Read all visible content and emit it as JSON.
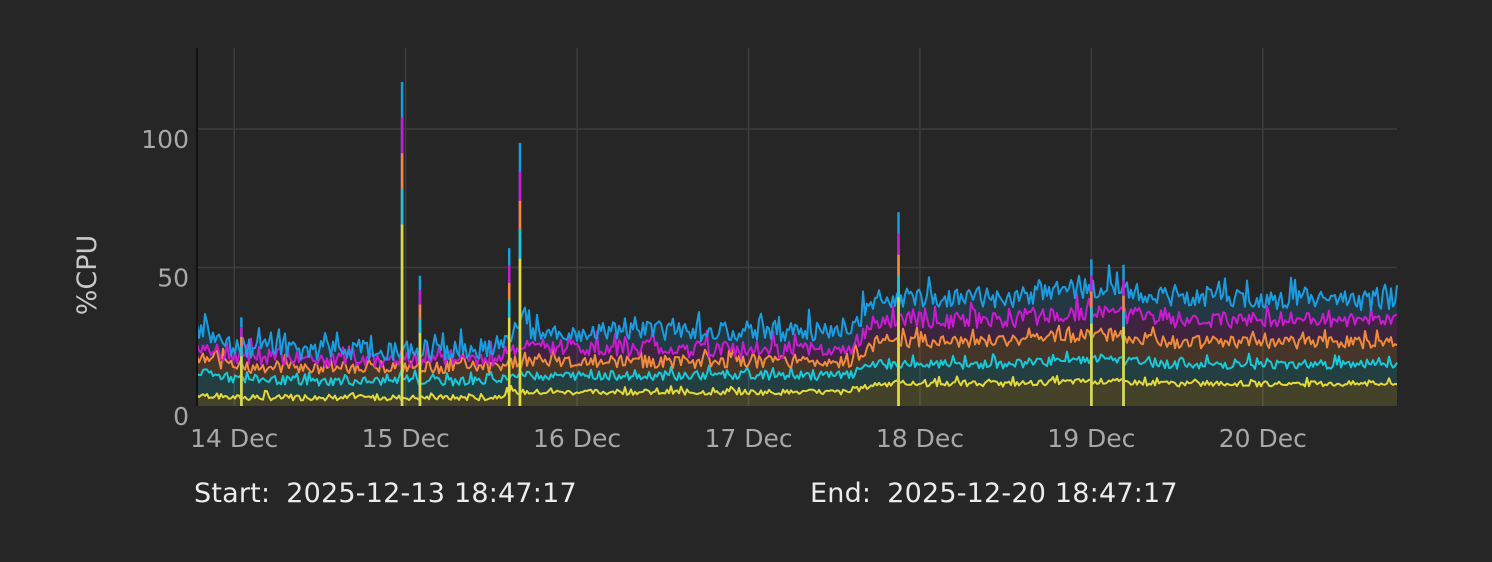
{
  "chart_data": {
    "type": "area",
    "ylabel": "%CPU",
    "xlabel": "",
    "ylim": [
      0,
      130
    ],
    "yticks": [
      0,
      50,
      100
    ],
    "ytick_labels": [
      "0",
      "50",
      "100"
    ],
    "xlim": [
      "2025-12-13 18:47:17",
      "2025-12-20 18:47:17"
    ],
    "xtick_labels": [
      "14 Dec",
      "15 Dec",
      "16 Dec",
      "17 Dec",
      "18 Dec",
      "19 Dec",
      "20 Dec"
    ],
    "xtick_dates": [
      "2025-12-14",
      "2025-12-15",
      "2025-12-16",
      "2025-12-17",
      "2025-12-18",
      "2025-12-19",
      "2025-12-20"
    ],
    "grid": true,
    "stacked": true,
    "series": [
      {
        "color": "#e4d93a",
        "x": [
          "2025-12-13 19:00",
          "2025-12-14 00:00",
          "2025-12-14 10:00",
          "2025-12-14 23:00",
          "2025-12-15 00:00",
          "2025-12-15 12:00",
          "2025-12-15 15:00",
          "2025-12-16 00:00",
          "2025-12-17 00:00",
          "2025-12-17 14:00",
          "2025-12-17 18:00",
          "2025-12-18 12:00",
          "2025-12-19 00:00",
          "2025-12-19 12:00",
          "2025-12-20 00:00",
          "2025-12-20 18:47"
        ],
        "values": [
          4,
          3,
          3,
          3,
          3,
          3,
          5,
          5,
          5,
          5,
          8,
          8,
          9,
          8,
          8,
          8
        ]
      },
      {
        "color": "#16c8d8",
        "x": [
          "2025-12-13 19:00",
          "2025-12-14 00:00",
          "2025-12-14 10:00",
          "2025-12-14 23:00",
          "2025-12-15 00:00",
          "2025-12-15 12:00",
          "2025-12-15 15:00",
          "2025-12-16 00:00",
          "2025-12-17 00:00",
          "2025-12-17 14:00",
          "2025-12-17 18:00",
          "2025-12-18 12:00",
          "2025-12-19 00:00",
          "2025-12-19 12:00",
          "2025-12-20 00:00",
          "2025-12-20 18:47"
        ],
        "values": [
          12,
          10,
          9,
          9,
          9,
          9,
          11,
          11,
          11,
          11,
          15,
          15,
          17,
          15,
          15,
          15
        ]
      },
      {
        "color": "#f08a3c",
        "x": [
          "2025-12-13 19:00",
          "2025-12-14 00:00",
          "2025-12-14 10:00",
          "2025-12-14 23:00",
          "2025-12-15 00:00",
          "2025-12-15 12:00",
          "2025-12-15 15:00",
          "2025-12-16 00:00",
          "2025-12-17 00:00",
          "2025-12-17 14:00",
          "2025-12-17 18:00",
          "2025-12-18 12:00",
          "2025-12-19 00:00",
          "2025-12-19 12:00",
          "2025-12-20 00:00",
          "2025-12-20 18:47"
        ],
        "values": [
          17,
          14,
          14,
          14,
          14,
          14,
          16,
          16,
          16,
          16,
          23,
          23,
          26,
          23,
          23,
          23
        ]
      },
      {
        "color": "#c81cd0",
        "x": [
          "2025-12-13 19:00",
          "2025-12-14 00:00",
          "2025-12-14 10:00",
          "2025-12-14 23:00",
          "2025-12-15 00:00",
          "2025-12-15 12:00",
          "2025-12-15 15:00",
          "2025-12-16 00:00",
          "2025-12-17 00:00",
          "2025-12-17 14:00",
          "2025-12-17 18:00",
          "2025-12-18 12:00",
          "2025-12-19 00:00",
          "2025-12-19 12:00",
          "2025-12-20 00:00",
          "2025-12-20 18:47"
        ],
        "values": [
          22,
          18,
          17,
          17,
          17,
          17,
          21,
          21,
          20,
          20,
          31,
          31,
          34,
          31,
          31,
          31
        ]
      },
      {
        "color": "#1a9ce0",
        "x": [
          "2025-12-13 19:00",
          "2025-12-14 00:00",
          "2025-12-14 10:00",
          "2025-12-14 23:00",
          "2025-12-15 00:00",
          "2025-12-15 12:00",
          "2025-12-15 15:00",
          "2025-12-16 00:00",
          "2025-12-17 00:00",
          "2025-12-17 14:00",
          "2025-12-17 18:00",
          "2025-12-18 12:00",
          "2025-12-19 00:00",
          "2025-12-19 12:00",
          "2025-12-20 00:00",
          "2025-12-20 18:47"
        ],
        "values": [
          28,
          21,
          20,
          20,
          20,
          20,
          27,
          27,
          27,
          27,
          39,
          39,
          43,
          39,
          38,
          38
        ]
      }
    ],
    "spikes": [
      {
        "x": "2025-12-14 01:00",
        "value": 32
      },
      {
        "x": "2025-12-14 23:30",
        "value": 117
      },
      {
        "x": "2025-12-15 02:00",
        "value": 47
      },
      {
        "x": "2025-12-15 14:30",
        "value": 57
      },
      {
        "x": "2025-12-15 16:00",
        "value": 95
      },
      {
        "x": "2025-12-17 21:00",
        "value": 70
      },
      {
        "x": "2025-12-19 00:00",
        "value": 53
      },
      {
        "x": "2025-12-19 04:30",
        "value": 51
      }
    ]
  },
  "footer": {
    "start_label": "Start:",
    "start_value": "2025-12-13 18:47:17",
    "end_label": "End:",
    "end_value": "2025-12-20 18:47:17"
  }
}
